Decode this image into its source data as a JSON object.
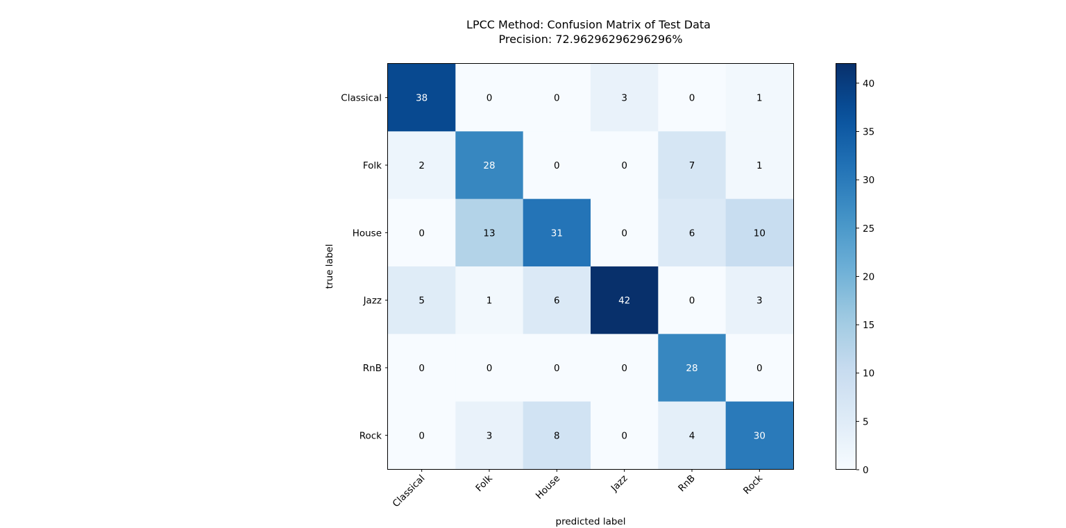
{
  "chart_data": {
    "type": "heatmap",
    "title": "LPCC Method: Confusion Matrix of Test Data",
    "subtitle": "Precision: 72.96296296296296%",
    "xlabel": "predicted label",
    "ylabel": "true label",
    "x_categories": [
      "Classical",
      "Folk",
      "House",
      "Jazz",
      "RnB",
      "Rock"
    ],
    "y_categories": [
      "Classical",
      "Folk",
      "House",
      "Jazz",
      "RnB",
      "Rock"
    ],
    "values": [
      [
        38,
        0,
        0,
        3,
        0,
        1
      ],
      [
        2,
        28,
        0,
        0,
        7,
        1
      ],
      [
        0,
        13,
        31,
        0,
        6,
        10
      ],
      [
        5,
        1,
        6,
        42,
        0,
        3
      ],
      [
        0,
        0,
        0,
        0,
        28,
        0
      ],
      [
        0,
        3,
        8,
        0,
        4,
        30
      ]
    ],
    "colormap": "Blues",
    "vmin": 0,
    "vmax": 42,
    "colorbar_ticks": [
      0,
      5,
      10,
      15,
      20,
      25,
      30,
      35,
      40
    ],
    "grid": false
  }
}
